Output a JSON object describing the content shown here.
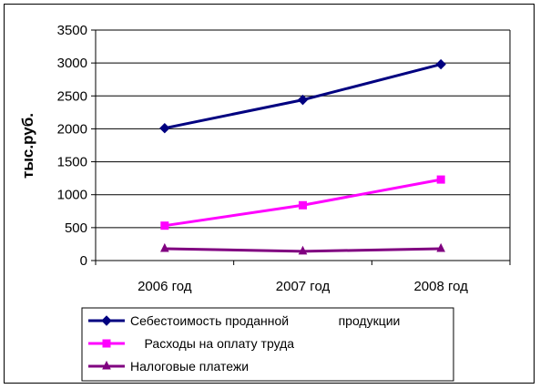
{
  "chart_data": {
    "type": "line",
    "categories": [
      "2006 год",
      "2007 год",
      "2008 год"
    ],
    "ylabel": "тыс.руб.",
    "ylim": [
      0,
      3500
    ],
    "yticks": [
      0,
      500,
      1000,
      1500,
      2000,
      2500,
      3000,
      3500
    ],
    "grid": true,
    "legend": "bottom",
    "series": [
      {
        "name": "Себестоимость проданной продукции",
        "legend_text": "Себестоимость проданной              продукции",
        "values": [
          2010,
          2440,
          2980
        ],
        "color": "#000080",
        "marker": "diamond"
      },
      {
        "name": "Расходы на оплату труда",
        "legend_text": "    Расходы на оплату труда",
        "values": [
          530,
          840,
          1230
        ],
        "color": "#ff00ff",
        "marker": "square"
      },
      {
        "name": "Налоговые платежи",
        "legend_text": "Налоговые платежи",
        "values": [
          180,
          140,
          180
        ],
        "color": "#800080",
        "marker": "triangle"
      }
    ]
  }
}
